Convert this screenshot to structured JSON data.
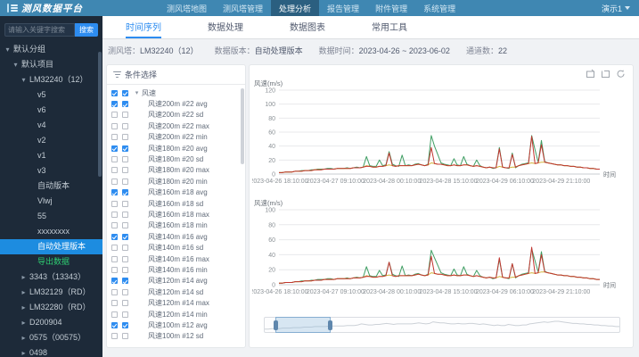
{
  "app": {
    "title": "测风数据平台",
    "user": "演示1"
  },
  "nav": {
    "items": [
      {
        "label": "测风塔地图"
      },
      {
        "label": "测风塔管理"
      },
      {
        "label": "处理分析",
        "active": true
      },
      {
        "label": "报告管理"
      },
      {
        "label": "附件管理"
      },
      {
        "label": "系统管理"
      }
    ]
  },
  "sidebar": {
    "search_placeholder": "请输入关键字搜索",
    "search_button": "搜索",
    "tree": [
      {
        "label": "默认分组",
        "level": 0,
        "caret": "down"
      },
      {
        "label": "默认项目",
        "level": 1,
        "caret": "down"
      },
      {
        "label": "LM32240（12）",
        "level": 2,
        "caret": "down"
      },
      {
        "label": "v5",
        "level": 3
      },
      {
        "label": "v6",
        "level": 3
      },
      {
        "label": "v4",
        "level": 3
      },
      {
        "label": "v2",
        "level": 3
      },
      {
        "label": "v1",
        "level": 3
      },
      {
        "label": "v3",
        "level": 3
      },
      {
        "label": "自动版本",
        "level": 3
      },
      {
        "label": "Vlwj",
        "level": 3
      },
      {
        "label": "55",
        "level": 3
      },
      {
        "label": "xxxxxxxx",
        "level": 3
      },
      {
        "label": "自动处理版本",
        "level": 3,
        "selected": true
      },
      {
        "label": "导出数据",
        "level": 3,
        "green": true
      },
      {
        "label": "3343（13343）",
        "level": 2,
        "caret": "right"
      },
      {
        "label": "LM32129（RD）",
        "level": 2,
        "caret": "right"
      },
      {
        "label": "LM32280（RD）",
        "level": 2,
        "caret": "right"
      },
      {
        "label": "D200904",
        "level": 2,
        "caret": "right"
      },
      {
        "label": "0575（00575）",
        "level": 2,
        "caret": "right"
      },
      {
        "label": "0498",
        "level": 2,
        "caret": "right"
      }
    ]
  },
  "tabs": [
    {
      "label": "时间序列",
      "active": true
    },
    {
      "label": "数据处理"
    },
    {
      "label": "数据图表"
    },
    {
      "label": "常用工具"
    }
  ],
  "info": [
    {
      "label": "测风塔：",
      "value": "LM32240（12）"
    },
    {
      "label": "数据版本：",
      "value": "自动处理版本"
    },
    {
      "label": "数据时间：",
      "value": "2023-04-26 ~ 2023-06-02"
    },
    {
      "label": "通道数：",
      "value": "22"
    }
  ],
  "conditions": {
    "title": "条件选择",
    "rows": [
      {
        "label": "风速",
        "parent": true,
        "c1": true,
        "c2": true
      },
      {
        "label": "风速200m #22 avg",
        "c1": true,
        "c2": true
      },
      {
        "label": "风速200m #22 sd"
      },
      {
        "label": "风速200m #22 max"
      },
      {
        "label": "风速200m #22 min"
      },
      {
        "label": "风速180m #20 avg",
        "c1": true,
        "c2": true
      },
      {
        "label": "风速180m #20 sd"
      },
      {
        "label": "风速180m #20 max"
      },
      {
        "label": "风速180m #20 min"
      },
      {
        "label": "风速160m #18 avg",
        "c1": true,
        "c2": true
      },
      {
        "label": "风速160m #18 sd"
      },
      {
        "label": "风速160m #18 max"
      },
      {
        "label": "风速160m #18 min"
      },
      {
        "label": "风速140m #16 avg",
        "c1": true,
        "c2": true
      },
      {
        "label": "风速140m #16 sd"
      },
      {
        "label": "风速140m #16 max"
      },
      {
        "label": "风速140m #16 min"
      },
      {
        "label": "风速120m #14 avg",
        "c1": true,
        "c2": true
      },
      {
        "label": "风速120m #14 sd"
      },
      {
        "label": "风速120m #14 max"
      },
      {
        "label": "风速120m #14 min"
      },
      {
        "label": "风速100m #12 avg",
        "c1": true,
        "c2": true
      },
      {
        "label": "风速100m #12 sd"
      }
    ]
  },
  "slider": {
    "start_pct": 3,
    "end_pct": 18
  },
  "chart_data": [
    {
      "type": "line",
      "title": "风速(m/s)",
      "xlabel": "时间",
      "ylim": [
        0,
        120
      ],
      "yticks": [
        0,
        20,
        40,
        60,
        80,
        100,
        120
      ],
      "grid": true,
      "legend": "none",
      "x_labels": [
        "2023-04-26 18:10:00",
        "2023-04-27 09:10:00",
        "2023-04-28 00:10:00",
        "2023-04-28 15:10:00",
        "2023-04-29 06:10:00",
        "2023-04-29 21:10:00"
      ],
      "series": [
        {
          "name": "风速160m #18 avg",
          "color": "#3f9e63",
          "values": [
            2,
            2,
            3,
            3,
            3,
            4,
            4,
            5,
            5,
            5,
            6,
            6,
            7,
            7,
            7,
            8,
            8,
            7,
            8,
            8,
            8,
            9,
            8,
            9,
            10,
            9,
            10,
            25,
            12,
            11,
            11,
            20,
            12,
            13,
            32,
            14,
            12,
            11,
            27,
            12,
            13,
            12,
            14,
            15,
            13,
            12,
            14,
            55,
            40,
            28,
            16,
            14,
            13,
            12,
            22,
            13,
            12,
            25,
            14,
            12,
            11,
            20,
            12,
            10,
            9,
            10,
            8,
            9,
            38,
            10,
            9,
            8,
            30,
            9,
            12,
            14,
            15,
            16,
            55,
            35,
            17,
            48,
            18,
            16,
            15,
            14,
            13,
            13,
            12,
            12,
            11,
            11,
            10,
            10,
            9,
            9,
            8,
            8,
            7,
            7
          ]
        },
        {
          "name": "风速180m #20 avg",
          "color": "#d4b43c",
          "values": [
            2,
            2,
            3,
            3,
            3,
            4,
            4,
            4,
            5,
            5,
            5,
            6,
            6,
            6,
            7,
            7,
            7,
            7,
            8,
            8,
            8,
            8,
            8,
            9,
            9,
            9,
            10,
            12,
            11,
            10,
            10,
            11,
            11,
            12,
            13,
            12,
            11,
            12,
            12,
            12,
            12,
            12,
            13,
            14,
            13,
            12,
            13,
            16,
            15,
            14,
            14,
            13,
            12,
            12,
            13,
            12,
            12,
            13,
            13,
            12,
            11,
            12,
            11,
            10,
            9,
            10,
            9,
            9,
            11,
            10,
            9,
            9,
            10,
            10,
            12,
            13,
            14,
            15,
            16,
            15,
            16,
            17,
            17,
            16,
            15,
            14,
            13,
            13,
            12,
            12,
            11,
            11,
            10,
            10,
            9,
            9,
            8,
            8,
            7,
            7
          ]
        },
        {
          "name": "风速200m #22 avg",
          "color": "#c13530",
          "values": [
            2,
            2,
            3,
            3,
            3,
            4,
            4,
            4,
            5,
            5,
            5,
            6,
            6,
            6,
            7,
            7,
            7,
            7,
            8,
            8,
            8,
            8,
            8,
            9,
            9,
            9,
            10,
            11,
            11,
            10,
            10,
            11,
            11,
            12,
            30,
            12,
            11,
            12,
            12,
            12,
            12,
            12,
            13,
            14,
            13,
            12,
            13,
            38,
            15,
            14,
            14,
            13,
            12,
            12,
            13,
            12,
            12,
            13,
            13,
            12,
            11,
            12,
            11,
            10,
            9,
            10,
            9,
            9,
            36,
            10,
            9,
            9,
            28,
            10,
            12,
            13,
            14,
            15,
            54,
            15,
            16,
            42,
            17,
            16,
            15,
            14,
            13,
            13,
            12,
            12,
            11,
            11,
            10,
            10,
            9,
            9,
            8,
            8,
            7,
            7
          ]
        }
      ]
    },
    {
      "type": "line",
      "title": "风速(m/s)",
      "xlabel": "时间",
      "ylim": [
        0,
        100
      ],
      "yticks": [
        0,
        20,
        40,
        60,
        80,
        100
      ],
      "grid": true,
      "legend": "none",
      "x_labels": [
        "2023-04-26 18:10:00",
        "2023-04-27 09:10:00",
        "2023-04-28 00:10:00",
        "2023-04-28 15:10:00",
        "2023-04-29 06:10:00",
        "2023-04-29 21:10:00"
      ],
      "series": [
        {
          "name": "风速140m #16 avg",
          "color": "#3f9e63",
          "values": [
            2,
            2,
            3,
            3,
            3,
            4,
            4,
            5,
            5,
            5,
            6,
            6,
            7,
            7,
            7,
            8,
            8,
            7,
            8,
            8,
            8,
            9,
            8,
            9,
            10,
            9,
            10,
            24,
            12,
            11,
            11,
            19,
            12,
            13,
            30,
            14,
            12,
            11,
            25,
            12,
            13,
            12,
            14,
            15,
            13,
            12,
            14,
            46,
            36,
            26,
            16,
            14,
            13,
            12,
            21,
            13,
            12,
            24,
            14,
            12,
            11,
            19,
            12,
            10,
            9,
            10,
            8,
            9,
            34,
            10,
            9,
            8,
            28,
            9,
            12,
            14,
            15,
            16,
            48,
            32,
            17,
            44,
            18,
            16,
            15,
            14,
            13,
            13,
            12,
            12,
            11,
            11,
            10,
            10,
            9,
            9,
            8,
            8,
            7,
            7
          ]
        },
        {
          "name": "风速120m #14 avg",
          "color": "#d4b43c",
          "values": [
            2,
            2,
            3,
            3,
            3,
            4,
            4,
            4,
            5,
            5,
            5,
            6,
            6,
            6,
            7,
            7,
            7,
            7,
            8,
            8,
            8,
            8,
            8,
            9,
            9,
            9,
            10,
            12,
            11,
            10,
            10,
            11,
            11,
            12,
            13,
            12,
            11,
            12,
            12,
            12,
            12,
            12,
            13,
            14,
            13,
            12,
            13,
            16,
            15,
            14,
            14,
            13,
            12,
            12,
            13,
            12,
            12,
            13,
            13,
            12,
            11,
            12,
            11,
            10,
            9,
            10,
            9,
            9,
            11,
            10,
            9,
            9,
            10,
            10,
            12,
            13,
            14,
            15,
            16,
            15,
            16,
            17,
            17,
            16,
            15,
            14,
            13,
            13,
            12,
            12,
            11,
            11,
            10,
            10,
            9,
            9,
            8,
            8,
            7,
            7
          ]
        },
        {
          "name": "风速100m #12 avg",
          "color": "#c13530",
          "values": [
            2,
            2,
            3,
            3,
            3,
            4,
            4,
            4,
            5,
            5,
            5,
            6,
            6,
            6,
            7,
            7,
            7,
            7,
            8,
            8,
            8,
            8,
            8,
            9,
            9,
            9,
            10,
            11,
            11,
            10,
            10,
            11,
            11,
            12,
            30,
            12,
            11,
            12,
            12,
            12,
            12,
            12,
            13,
            14,
            13,
            12,
            13,
            38,
            15,
            14,
            14,
            13,
            12,
            12,
            13,
            12,
            12,
            13,
            13,
            12,
            11,
            12,
            11,
            10,
            9,
            10,
            9,
            9,
            36,
            10,
            9,
            9,
            28,
            10,
            12,
            13,
            14,
            15,
            50,
            15,
            16,
            40,
            17,
            16,
            15,
            14,
            13,
            13,
            12,
            12,
            11,
            11,
            10,
            10,
            9,
            9,
            8,
            8,
            7,
            7
          ]
        }
      ]
    }
  ]
}
